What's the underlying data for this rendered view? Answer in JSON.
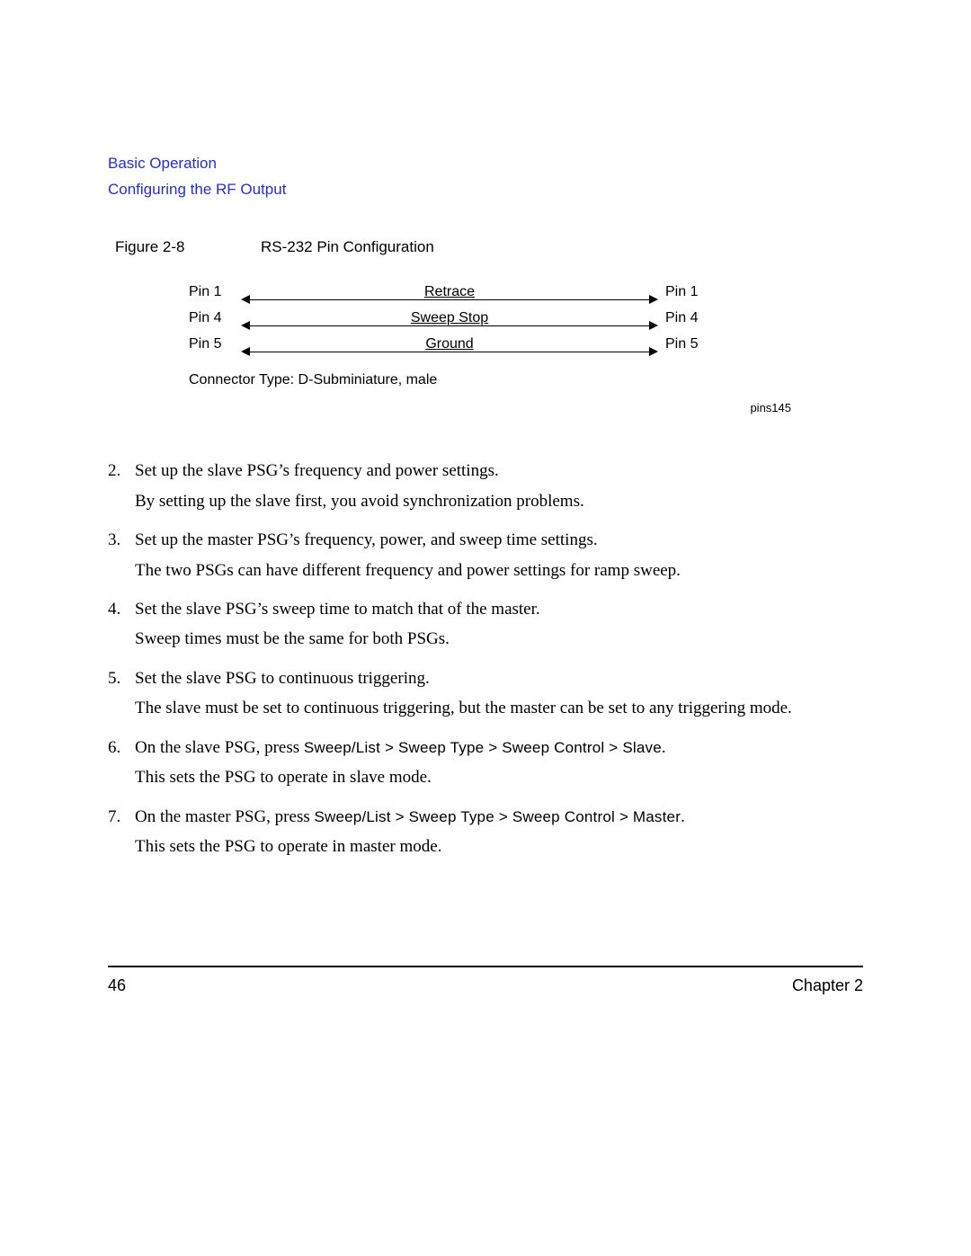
{
  "header": {
    "line1": "Basic Operation",
    "line2": "Configuring the RF Output"
  },
  "figure": {
    "label": "Figure 2-8",
    "title": "RS-232 Pin Configuration",
    "rows": [
      {
        "left": "Pin 1",
        "signal": "Retrace",
        "right": "Pin 1"
      },
      {
        "left": "Pin 4",
        "signal": "Sweep Stop",
        "right": "Pin 4"
      },
      {
        "left": "Pin 5",
        "signal": "Ground",
        "right": "Pin 5"
      }
    ],
    "connector_note": "Connector Type: D-Subminiature, male",
    "id": "pins145"
  },
  "steps": [
    {
      "num": "2.",
      "lead": "Set up the slave PSG’s frequency and power settings.",
      "detail": "By setting up the slave first, you avoid synchronization problems."
    },
    {
      "num": "3.",
      "lead": "Set up the master PSG’s frequency, power, and sweep time settings.",
      "detail": "The two PSGs can have different frequency and power settings for ramp sweep."
    },
    {
      "num": "4.",
      "lead": "Set the slave PSG’s sweep time to match that of the master.",
      "detail": "Sweep times must be the same for both PSGs."
    },
    {
      "num": "5.",
      "lead": "Set the slave PSG to continuous triggering.",
      "detail": "The slave must be set to continuous triggering, but the master can be set to any triggering mode."
    },
    {
      "num": "6.",
      "lead_pre": "On the slave PSG, press ",
      "menu": "Sweep/List > Sweep Type > Sweep Control > Slave",
      "lead_post": ".",
      "detail": "This sets the PSG to operate in slave mode."
    },
    {
      "num": "7.",
      "lead_pre": "On the master PSG, press ",
      "menu": "Sweep/List > Sweep Type > Sweep Control > Master",
      "lead_post": ".",
      "detail": "This sets the PSG to operate in master mode."
    }
  ],
  "footer": {
    "page": "46",
    "chapter": "Chapter 2"
  },
  "colors": {
    "link": "#2030d0",
    "text": "#000000",
    "background": "#ffffff"
  }
}
